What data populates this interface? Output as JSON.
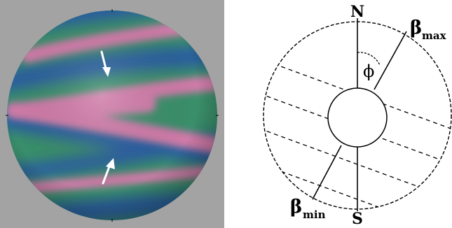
{
  "left_panel": {
    "background_color": "#a3a3a3",
    "sphere_base_color": "#3a8f6a",
    "stripe_color": "#d07aa8",
    "band_color": "#2c5fa0",
    "arrow_color": "#ffffff"
  },
  "right_panel": {
    "labels": {
      "north": "N",
      "south": "S",
      "phi": "ϕ",
      "beta_max_symbol": "β",
      "beta_max_subscript": "max",
      "beta_min_symbol": "β",
      "beta_min_subscript": "min"
    },
    "line_color": "#000000"
  }
}
